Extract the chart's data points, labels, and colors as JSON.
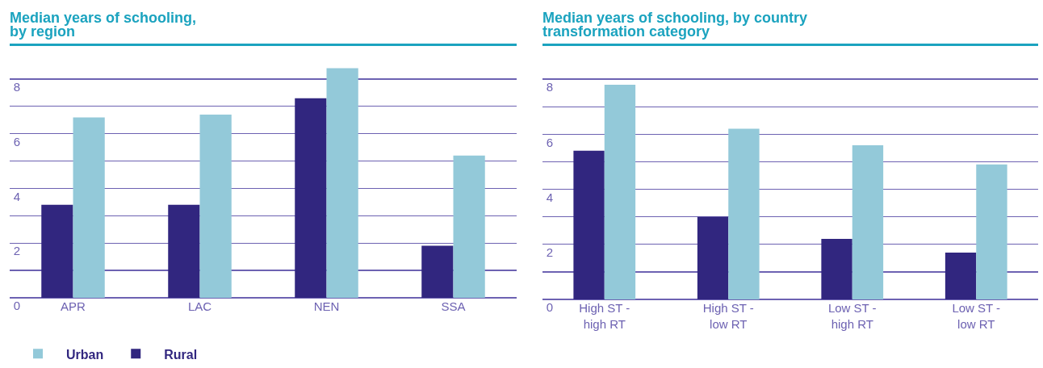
{
  "chart_data": [
    {
      "type": "bar",
      "title": "Median years of schooling,\nby region",
      "categories": [
        "APR",
        "LAC",
        "NEN",
        "SSA"
      ],
      "series": [
        {
          "name": "Rural",
          "color": "#31267f",
          "values": [
            3.4,
            3.4,
            7.3,
            1.9
          ]
        },
        {
          "name": "Urban",
          "color": "#93c9d9",
          "values": [
            6.6,
            6.7,
            8.4,
            5.2
          ]
        }
      ],
      "ylim": [
        0,
        8.5
      ],
      "yticks": [
        0,
        {
          "value": 1,
          "label": null
        },
        2,
        {
          "value": 3,
          "label": null
        },
        4,
        {
          "value": 5,
          "label": null
        },
        6,
        {
          "value": 7,
          "label": null
        },
        8
      ],
      "grid": "y",
      "legend": "bottom left"
    },
    {
      "type": "bar",
      "title": "Median years of schooling, by country\ntransformation category",
      "categories": [
        "High ST -\nhigh RT",
        "High ST -\nlow RT",
        "Low ST -\nhigh RT",
        "Low ST -\nlow RT"
      ],
      "series": [
        {
          "color": "#31267f",
          "values": [
            5.4,
            3.0,
            2.2,
            1.7
          ]
        },
        {
          "color": "#93c9d9",
          "values": [
            7.8,
            6.2,
            5.6,
            4.9
          ]
        }
      ],
      "ylim": [
        0,
        8.5
      ],
      "yticks": [
        0,
        {
          "value": 1,
          "label": null
        },
        2,
        {
          "value": 3,
          "label": null
        },
        4,
        {
          "value": 5,
          "label": null
        },
        6,
        {
          "value": 7,
          "label": null
        },
        8
      ],
      "grid": "y",
      "legend": false
    }
  ]
}
